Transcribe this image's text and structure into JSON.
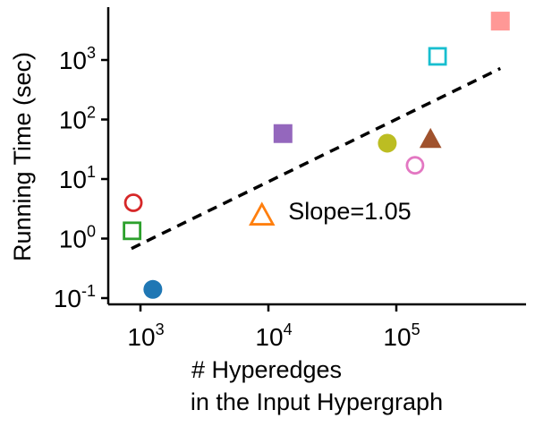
{
  "chart_data": {
    "type": "scatter",
    "title": "",
    "xlabel": [
      "# Hyperedges",
      "in the Input Hypergraph"
    ],
    "ylabel": "Running Time (sec)",
    "xscale": "log",
    "yscale": "log",
    "xlim": [
      600,
      800000
    ],
    "ylim": [
      0.07,
      12000
    ],
    "grid": false,
    "legend": "none",
    "x_ticks": [
      {
        "value": 1000,
        "base": "10",
        "exp": "3"
      },
      {
        "value": 10000,
        "base": "10",
        "exp": "4"
      },
      {
        "value": 100000,
        "base": "10",
        "exp": "5"
      }
    ],
    "y_ticks": [
      {
        "value": 0.1,
        "base": "10",
        "exp": "-1"
      },
      {
        "value": 1,
        "base": "10",
        "exp": "0"
      },
      {
        "value": 10,
        "base": "10",
        "exp": "1"
      },
      {
        "value": 100,
        "base": "10",
        "exp": "2"
      },
      {
        "value": 1000,
        "base": "10",
        "exp": "3"
      }
    ],
    "points": [
      {
        "x": 880,
        "y": 4.0,
        "marker": "circle-open",
        "color": "#d62728"
      },
      {
        "x": 860,
        "y": 1.35,
        "marker": "square-open",
        "color": "#2ca02c"
      },
      {
        "x": 1250,
        "y": 0.14,
        "marker": "circle",
        "color": "#1f77b4"
      },
      {
        "x": 8900,
        "y": 2.4,
        "marker": "triangle-open",
        "color": "#ff7f0e"
      },
      {
        "x": 13000,
        "y": 58,
        "marker": "square",
        "color": "#9467bd"
      },
      {
        "x": 85000,
        "y": 40,
        "marker": "circle",
        "color": "#bcbd22"
      },
      {
        "x": 140000,
        "y": 17,
        "marker": "circle-open",
        "color": "#e377c2"
      },
      {
        "x": 185000,
        "y": 46,
        "marker": "triangle",
        "color": "#a0522d"
      },
      {
        "x": 210000,
        "y": 1150,
        "marker": "square-open",
        "color": "#17becf"
      },
      {
        "x": 650000,
        "y": 4500,
        "marker": "square",
        "color": "#ff9896"
      }
    ],
    "fit_line": {
      "x": [
        850,
        650000
      ],
      "y": [
        0.68,
        720
      ],
      "style": "dashed",
      "color": "#000000"
    },
    "annotation": {
      "text": "Slope=1.05",
      "x": 13000,
      "y": 5
    }
  }
}
